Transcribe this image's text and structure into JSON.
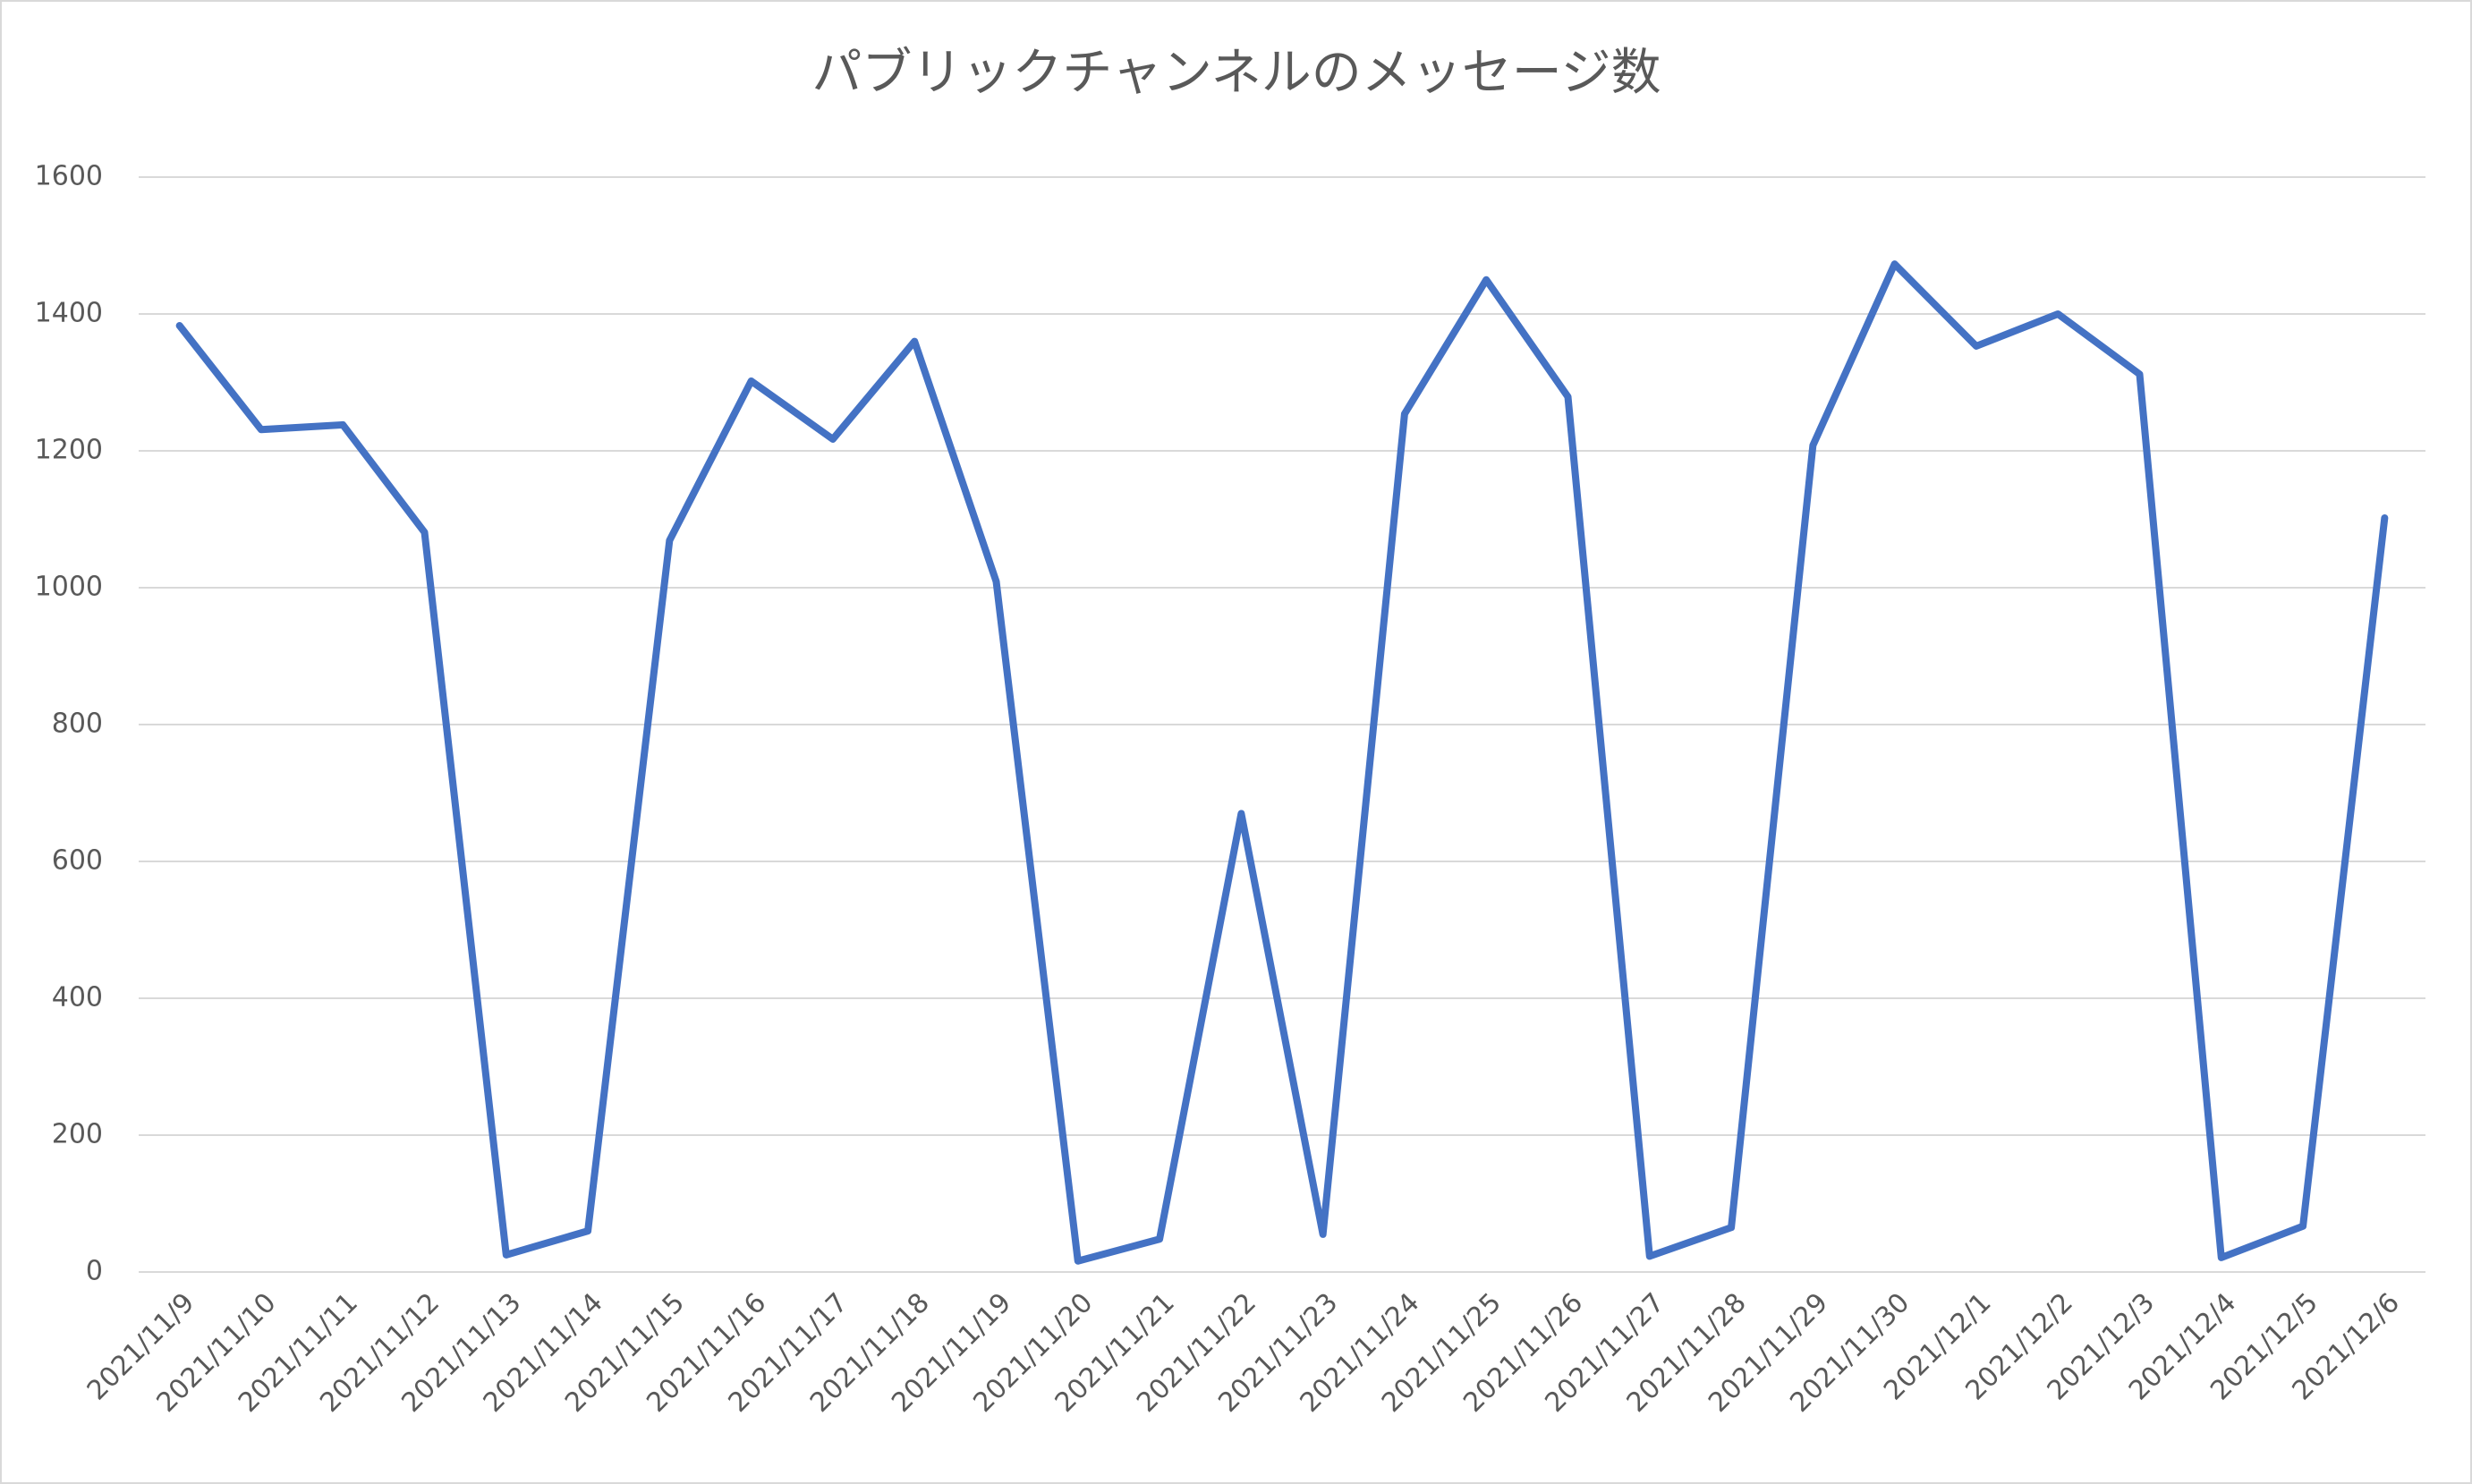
{
  "chart_data": {
    "type": "line",
    "title": "パブリックチャンネルのメッセージ数",
    "categories": [
      "2021/11/9",
      "2021/11/10",
      "2021/11/11",
      "2021/11/12",
      "2021/11/13",
      "2021/11/14",
      "2021/11/15",
      "2021/11/16",
      "2021/11/17",
      "2021/11/18",
      "2021/11/19",
      "2021/11/20",
      "2021/11/21",
      "2021/11/22",
      "2021/11/23",
      "2021/11/24",
      "2021/11/25",
      "2021/11/26",
      "2021/11/27",
      "2021/11/28",
      "2021/11/29",
      "2021/11/30",
      "2021/12/1",
      "2021/12/2",
      "2021/12/3",
      "2021/12/4",
      "2021/12/5",
      "2021/12/6"
    ],
    "values": [
      1383,
      1231,
      1238,
      1081,
      25,
      60,
      1069,
      1302,
      1217,
      1360,
      1009,
      16,
      48,
      670,
      55,
      1254,
      1450,
      1279,
      23,
      65,
      1208,
      1473,
      1353,
      1400,
      1312,
      21,
      67,
      1102
    ],
    "color": "#4472c4",
    "ylim": [
      0,
      1600
    ],
    "yticks": [
      0,
      200,
      400,
      600,
      800,
      1000,
      1200,
      1400,
      1600
    ],
    "grid": true
  }
}
